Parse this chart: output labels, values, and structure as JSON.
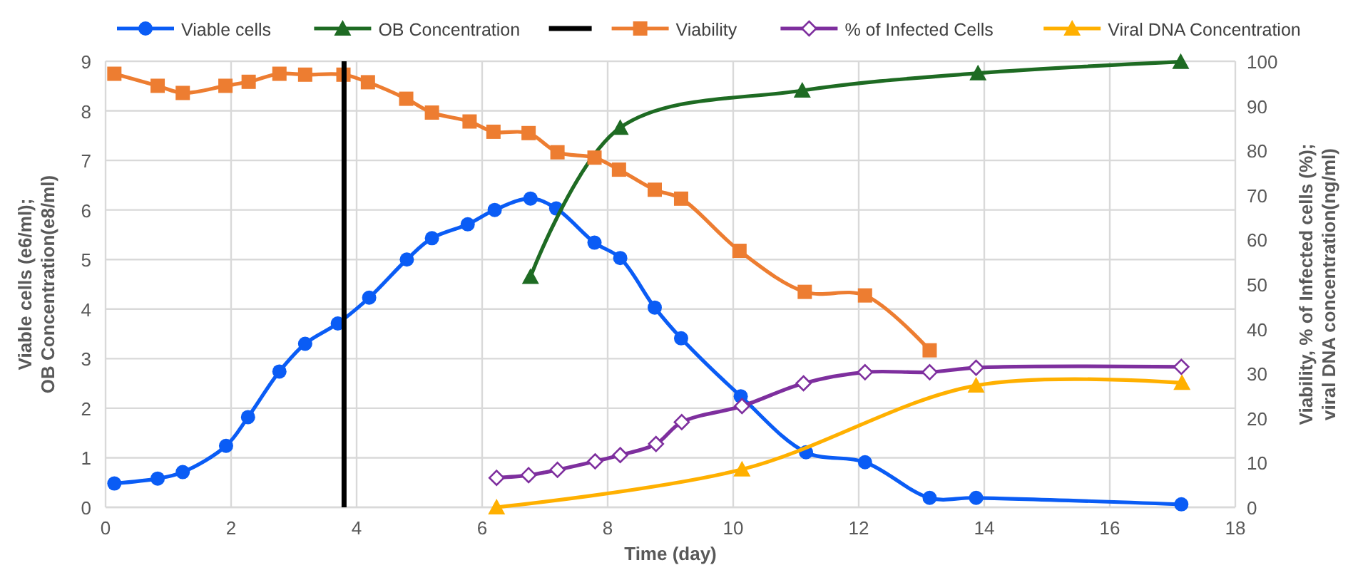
{
  "chart_data": {
    "type": "line",
    "xlabel": "Time (day)",
    "ylabel": "Viable cells (e6/ml);\nOB Concentration(e8/ml)",
    "y2label": "Viability, % of Infected cells (%);\nviral DNA concentration(ng/ml)",
    "xlim": [
      0,
      18
    ],
    "xticks": [
      0,
      2,
      4,
      6,
      8,
      10,
      12,
      14,
      16,
      18
    ],
    "ylim": [
      0,
      9
    ],
    "yticks": [
      0,
      1,
      2,
      3,
      4,
      5,
      6,
      7,
      8,
      9
    ],
    "y2lim": [
      0,
      100
    ],
    "y2ticks": [
      0,
      10,
      20,
      30,
      40,
      50,
      60,
      70,
      80,
      90,
      100
    ],
    "grid": true,
    "legend": "top",
    "line_style": "solid",
    "ref_lines": [
      {
        "axis": "x",
        "value": 3.8,
        "color": "#000000"
      }
    ],
    "series": [
      {
        "name": "Viable cells",
        "color": "#0a5cf5",
        "marker": "circle",
        "x": [
          0.14,
          0.83,
          1.23,
          1.92,
          2.27,
          2.77,
          3.18,
          3.7,
          4.2,
          4.8,
          5.2,
          5.77,
          6.2,
          6.77,
          7.18,
          7.79,
          8.2,
          8.75,
          9.17,
          10.12,
          11.16,
          12.1,
          13.13,
          13.87,
          17.14
        ],
        "values": [
          0.48,
          0.58,
          0.71,
          1.24,
          1.82,
          2.74,
          3.3,
          3.71,
          4.23,
          5.0,
          5.43,
          5.71,
          6.0,
          6.23,
          6.03,
          5.34,
          5.03,
          4.03,
          3.41,
          2.24,
          1.11,
          0.91,
          0.19,
          0.19,
          0.06
        ]
      },
      {
        "name": "OB Concentration",
        "color": "#1e6b23",
        "marker": "triangle",
        "x": [
          6.77,
          8.2,
          11.1,
          13.9,
          17.13
        ],
        "values": [
          4.65,
          7.66,
          8.41,
          8.76,
          8.99
        ]
      },
      {
        "name": "Viability",
        "color": "#ed7d31",
        "marker": "square",
        "axis": "y2",
        "x": [
          0.14,
          0.83,
          1.23,
          1.91,
          2.28,
          2.77,
          3.18,
          3.79,
          4.18,
          4.79,
          5.2,
          5.8,
          6.18,
          6.74,
          7.2,
          7.79,
          8.18,
          8.75,
          9.17,
          10.1,
          11.14,
          12.1,
          13.13
        ],
        "values": [
          97.2,
          94.5,
          92.9,
          94.5,
          95.4,
          97.2,
          97,
          97,
          95.3,
          91.6,
          88.5,
          86.5,
          84.2,
          83.9,
          79.6,
          78.4,
          75.7,
          71.2,
          69.2,
          57.5,
          48.3,
          47.5,
          35.2
        ]
      },
      {
        "name": "% of Infected Cells",
        "color": "#7e2f9e",
        "marker": "diamond",
        "axis": "y2",
        "x": [
          6.23,
          6.74,
          7.2,
          7.8,
          8.2,
          8.77,
          9.18,
          10.14,
          11.12,
          12.1,
          13.13,
          13.87,
          17.14
        ],
        "values": [
          6.6,
          7.2,
          8.4,
          10.3,
          11.7,
          14.2,
          19.1,
          22.7,
          27.8,
          30.3,
          30.3,
          31.3,
          31.5
        ]
      },
      {
        "name": "Viral DNA Concentration",
        "color": "#ffb000",
        "marker": "triangle",
        "axis": "y2",
        "x": [
          6.23,
          10.14,
          13.87,
          17.15
        ],
        "values": [
          0,
          8.5,
          27.3,
          27.9
        ]
      }
    ]
  }
}
